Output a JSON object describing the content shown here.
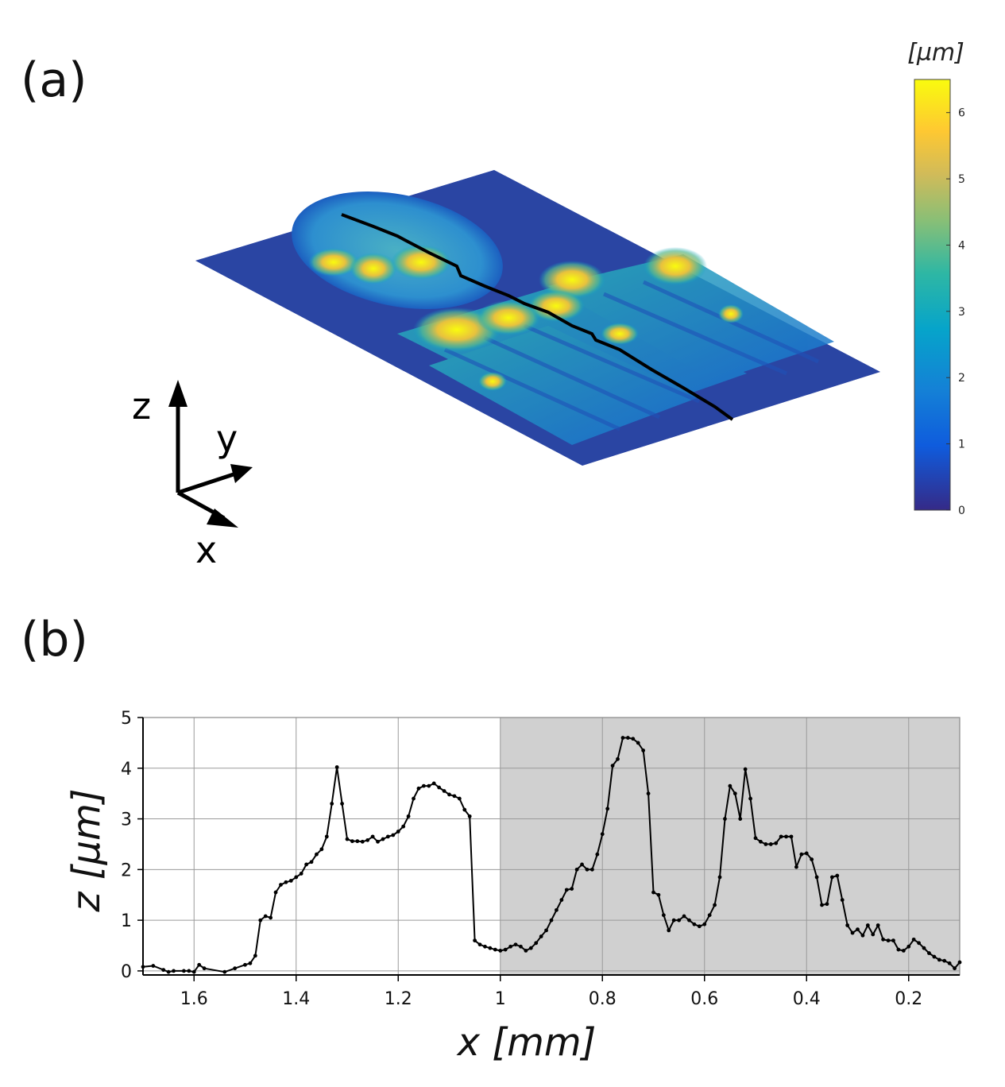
{
  "panels": {
    "a_label": "(a)",
    "b_label": "(b)"
  },
  "colorbar": {
    "unit": "[µm]",
    "ticks": [
      "0",
      "1",
      "2",
      "3",
      "4",
      "5",
      "6"
    ],
    "range": [
      0,
      6.5
    ],
    "colormap": [
      "#352a87",
      "#0f5cdd",
      "#1481d6",
      "#06a4ca",
      "#2eb7a4",
      "#87bf77",
      "#d1bb59",
      "#fec832",
      "#f9fb0e"
    ]
  },
  "axes3d": {
    "z_label": "z",
    "y_label": "y",
    "x_label": "x"
  },
  "chart_data": {
    "type": "line",
    "xlabel": "x [mm]",
    "ylabel": "z [µm]",
    "xlim": [
      1.7,
      0.1
    ],
    "ylim": [
      0,
      5
    ],
    "x_reversed": true,
    "grid": true,
    "xticks": [
      "1.6",
      "1.4",
      "1.2",
      "1",
      "0.8",
      "0.6",
      "0.4",
      "0.2"
    ],
    "yticks": [
      "0",
      "1",
      "2",
      "3",
      "4",
      "5"
    ],
    "shaded_region": {
      "x_from": 1.0,
      "x_to": 0.1,
      "color": "#d0d0d0"
    },
    "series": [
      {
        "x": [
          1.7,
          1.68,
          1.66,
          1.65,
          1.64,
          1.62,
          1.61,
          1.6,
          1.59,
          1.58,
          1.54,
          1.52,
          1.5,
          1.49,
          1.48,
          1.47,
          1.46,
          1.45,
          1.44,
          1.43,
          1.42,
          1.41,
          1.4,
          1.39,
          1.38,
          1.37,
          1.36,
          1.35,
          1.34,
          1.33,
          1.32,
          1.31,
          1.3,
          1.29,
          1.28,
          1.27,
          1.26,
          1.25,
          1.24,
          1.23,
          1.22,
          1.21,
          1.2,
          1.19,
          1.18,
          1.17,
          1.16,
          1.15,
          1.14,
          1.13,
          1.12,
          1.11,
          1.1,
          1.09,
          1.08,
          1.07,
          1.06,
          1.05,
          1.04,
          1.03,
          1.02,
          1.01,
          1.0,
          0.99,
          0.98,
          0.97,
          0.96,
          0.95,
          0.94,
          0.93,
          0.92,
          0.91,
          0.9,
          0.89,
          0.88,
          0.87,
          0.86,
          0.85,
          0.84,
          0.83,
          0.82,
          0.81,
          0.8,
          0.79,
          0.78,
          0.77,
          0.76,
          0.75,
          0.74,
          0.73,
          0.72,
          0.71,
          0.7,
          0.69,
          0.68,
          0.67,
          0.66,
          0.65,
          0.64,
          0.63,
          0.62,
          0.61,
          0.6,
          0.59,
          0.58,
          0.57,
          0.56,
          0.55,
          0.54,
          0.53,
          0.52,
          0.51,
          0.5,
          0.49,
          0.48,
          0.47,
          0.46,
          0.45,
          0.44,
          0.43,
          0.42,
          0.41,
          0.4,
          0.39,
          0.38,
          0.37,
          0.36,
          0.35,
          0.34,
          0.33,
          0.32,
          0.31,
          0.3,
          0.29,
          0.28,
          0.27,
          0.26,
          0.25,
          0.24,
          0.23,
          0.22,
          0.21,
          0.2,
          0.19,
          0.18,
          0.17,
          0.16,
          0.15,
          0.14,
          0.13,
          0.12,
          0.11,
          0.1
        ],
        "y": [
          0.08,
          0.1,
          0.02,
          -0.02,
          0.0,
          0.0,
          0.0,
          -0.02,
          0.12,
          0.05,
          -0.02,
          0.05,
          0.12,
          0.15,
          0.3,
          1.0,
          1.08,
          1.05,
          1.55,
          1.7,
          1.75,
          1.78,
          1.85,
          1.92,
          2.1,
          2.15,
          2.3,
          2.4,
          2.65,
          3.3,
          4.02,
          3.3,
          2.6,
          2.56,
          2.56,
          2.55,
          2.58,
          2.65,
          2.55,
          2.6,
          2.65,
          2.68,
          2.75,
          2.85,
          3.05,
          3.4,
          3.6,
          3.65,
          3.65,
          3.7,
          3.62,
          3.55,
          3.48,
          3.45,
          3.4,
          3.18,
          3.05,
          0.6,
          0.52,
          0.48,
          0.45,
          0.42,
          0.4,
          0.42,
          0.48,
          0.52,
          0.48,
          0.4,
          0.45,
          0.55,
          0.68,
          0.8,
          1.0,
          1.2,
          1.4,
          1.6,
          1.62,
          2.0,
          2.1,
          2.0,
          2.0,
          2.3,
          2.7,
          3.2,
          4.05,
          4.18,
          4.6,
          4.6,
          4.58,
          4.5,
          4.35,
          3.5,
          1.55,
          1.5,
          1.1,
          0.8,
          1.0,
          1.0,
          1.08,
          1.0,
          0.92,
          0.88,
          0.92,
          1.1,
          1.3,
          1.85,
          3.0,
          3.65,
          3.5,
          3.0,
          3.98,
          3.4,
          2.62,
          2.55,
          2.5,
          2.5,
          2.52,
          2.65,
          2.65,
          2.65,
          2.05,
          2.3,
          2.32,
          2.2,
          1.85,
          1.3,
          1.32,
          1.85,
          1.88,
          1.4,
          0.9,
          0.75,
          0.82,
          0.7,
          0.9,
          0.72,
          0.9,
          0.62,
          0.6,
          0.6,
          0.42,
          0.4,
          0.48,
          0.62,
          0.55,
          0.45,
          0.35,
          0.28,
          0.22,
          0.2,
          0.15,
          0.05,
          0.17
        ]
      }
    ]
  }
}
